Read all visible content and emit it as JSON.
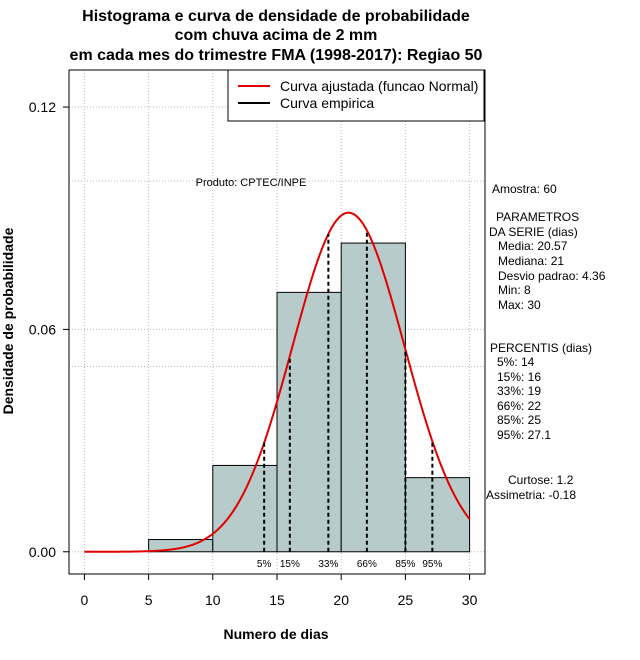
{
  "chart_data": {
    "type": "bar",
    "title_lines": [
      "Histograma e curva de densidade de probabilidade",
      "com chuva acima de 2 mm",
      "em cada mes do trimestre FMA (1998-2017): Regiao 50"
    ],
    "xlabel": "Numero de dias",
    "ylabel": "Densidade de probabilidade",
    "xlim": [
      -1.2,
      31.2
    ],
    "ylim": [
      -0.006,
      0.13
    ],
    "x_ticks": [
      0,
      5,
      10,
      15,
      20,
      25,
      30
    ],
    "y_ticks": [
      0.0,
      0.06,
      0.12
    ],
    "y_tick_labels": [
      "0.00",
      "0.06",
      "0.12"
    ],
    "bins": [
      {
        "x0": 5,
        "x1": 10,
        "density": 0.0033
      },
      {
        "x0": 10,
        "x1": 15,
        "density": 0.0233
      },
      {
        "x0": 15,
        "x1": 20,
        "density": 0.07
      },
      {
        "x0": 20,
        "x1": 25,
        "density": 0.0833
      },
      {
        "x0": 25,
        "x1": 30,
        "density": 0.02
      }
    ],
    "normal_fit": {
      "mean": 20.57,
      "sd": 4.36,
      "x_range": [
        0,
        30
      ]
    },
    "percentile_markers": [
      {
        "x": 14,
        "label": "5%"
      },
      {
        "x": 16,
        "label": "15%"
      },
      {
        "x": 19,
        "label": "33%"
      },
      {
        "x": 22,
        "label": "66%"
      },
      {
        "x": 25,
        "label": "85%"
      },
      {
        "x": 27.1,
        "label": "95%"
      }
    ],
    "grid_y": [
      0.05,
      0.1
    ],
    "legend": {
      "position": "top-right",
      "entries": [
        {
          "label": "Curva ajustada (funcao Normal)",
          "color": "#e00000"
        },
        {
          "label": "Curva empirica",
          "color": "#000000"
        }
      ]
    },
    "annotation_product": "Produto: CPTEC/INPE",
    "colors": {
      "bar_fill": "#b7cbcb",
      "curve": "#e00000",
      "grid": "#bbbbbb"
    }
  },
  "side_panel": {
    "sample": "Amostra: 60",
    "params_title_1": "PARAMETROS",
    "params_title_2": "DA SERIE (dias)",
    "params": [
      "Media: 20.57",
      "Mediana: 21",
      "Desvio padrao: 4.36",
      "Min: 8",
      "Max: 30"
    ],
    "percentiles_title": "PERCENTIS (dias)",
    "percentiles": [
      "5%: 14",
      "15%: 16",
      "33%: 19",
      "66%: 22",
      "85%: 25",
      "95%: 27.1"
    ],
    "kurtosis": "Curtose: 1.2",
    "skewness": "Assimetria: -0.18"
  }
}
